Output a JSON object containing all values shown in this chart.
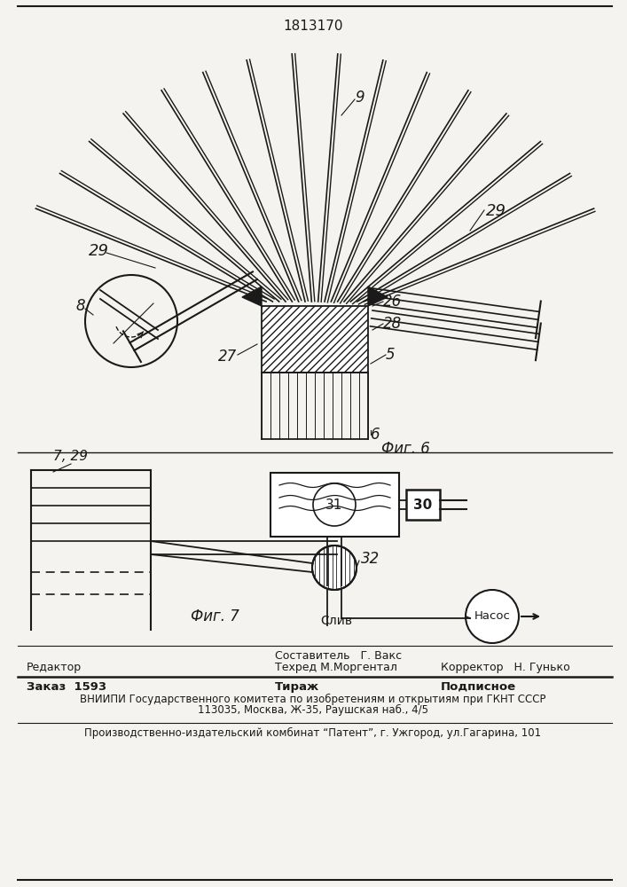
{
  "patent_number": "1813170",
  "fig6_label": "Фиг. 6",
  "fig7_label": "Фиг. 7",
  "bg_color": "#f5f3ef",
  "line_color": "#1a1a1a",
  "label_9": "9",
  "label_29a": "29",
  "label_29b": "29",
  "label_26": "26",
  "label_28": "28",
  "label_5": "5",
  "label_6": "6",
  "label_27": "27",
  "label_8": "8",
  "label_7_29": "7, 29",
  "label_31": "31",
  "label_30": "30",
  "label_32": "32",
  "label_sliv": "Слив",
  "label_nasos": "Насос",
  "footer_sostavitel": "Составитель   Г. Вакс",
  "footer_redaktor": "Редактор",
  "footer_tekhred": "Техред М.Моргентал",
  "footer_korrektor": "Корректор   Н. Гунько",
  "footer_zakaz": "Заказ  1593",
  "footer_tirazh": "Тираж",
  "footer_podpisnoe": "Подписное",
  "footer_vniiipi": "ВНИИПИ Государственного комитета по изобретениям и открытиям при ГКНТ СССР",
  "footer_address": "113035, Москва, Ж-35, Раушская наб., 4/5",
  "footer_patent": "Производственно-издательский комбинат “Патент”, г. Ужгород, ул.Гагарина, 101"
}
